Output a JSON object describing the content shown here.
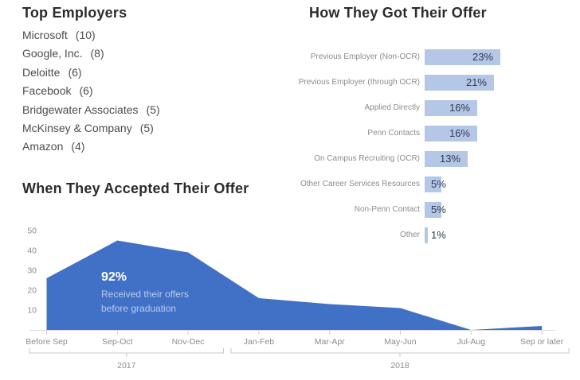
{
  "top_employers": {
    "title": "Top Employers",
    "items": [
      {
        "name": "Microsoft",
        "count": "(10)"
      },
      {
        "name": "Google, Inc.",
        "count": "(8)"
      },
      {
        "name": "Deloitte",
        "count": "(6)"
      },
      {
        "name": "Facebook",
        "count": "(6)"
      },
      {
        "name": "Bridgewater Associates",
        "count": "(5)"
      },
      {
        "name": "McKinsey & Company",
        "count": "(5)"
      },
      {
        "name": "Amazon",
        "count": "(4)"
      }
    ]
  },
  "chart_data": [
    {
      "id": "offer-sources",
      "type": "bar",
      "orientation": "horizontal",
      "title": "How They Got Their Offer",
      "categories": [
        "Previous Employer (Non-OCR)",
        "Previous Employer (through OCR)",
        "Applied Directly",
        "Penn Contacts",
        "On Campus Recruiting (OCR)",
        "Other Career Services Resources",
        "Non-Penn Contact",
        "Other"
      ],
      "values": [
        23,
        21,
        16,
        16,
        13,
        5,
        5,
        1
      ],
      "value_labels": [
        "23%",
        "21%",
        "16%",
        "16%",
        "13%",
        "5%",
        "5%",
        "1%"
      ],
      "xlim": [
        0,
        25
      ],
      "grid": false,
      "legend": "none",
      "bar_color": "#b4c7e7",
      "value_label_color": "#2f3b4c",
      "category_label_color": "#8c8c8c"
    },
    {
      "id": "acceptance-timeline",
      "type": "area",
      "title": "When They Accepted Their Offer",
      "categories": [
        "Before Sep",
        "Sep-Oct",
        "Nov-Dec",
        "Jan-Feb",
        "Mar-Apr",
        "May-Jun",
        "Jul-Aug",
        "Sep or later"
      ],
      "values": [
        26,
        45,
        39,
        16,
        13,
        11,
        0,
        2
      ],
      "ylim": [
        0,
        50
      ],
      "yticks": [
        50,
        40,
        30,
        20,
        10
      ],
      "grid": false,
      "legend": "none",
      "area_color": "#4171c6",
      "axis_label_color": "#8c8c8c",
      "year_groups": [
        {
          "label": "2017",
          "start": 0,
          "end": 2
        },
        {
          "label": "2018",
          "start": 3,
          "end": 7
        }
      ],
      "annotation": {
        "headline": "92%",
        "lines": [
          "Received their offers",
          "before graduation"
        ]
      }
    }
  ]
}
